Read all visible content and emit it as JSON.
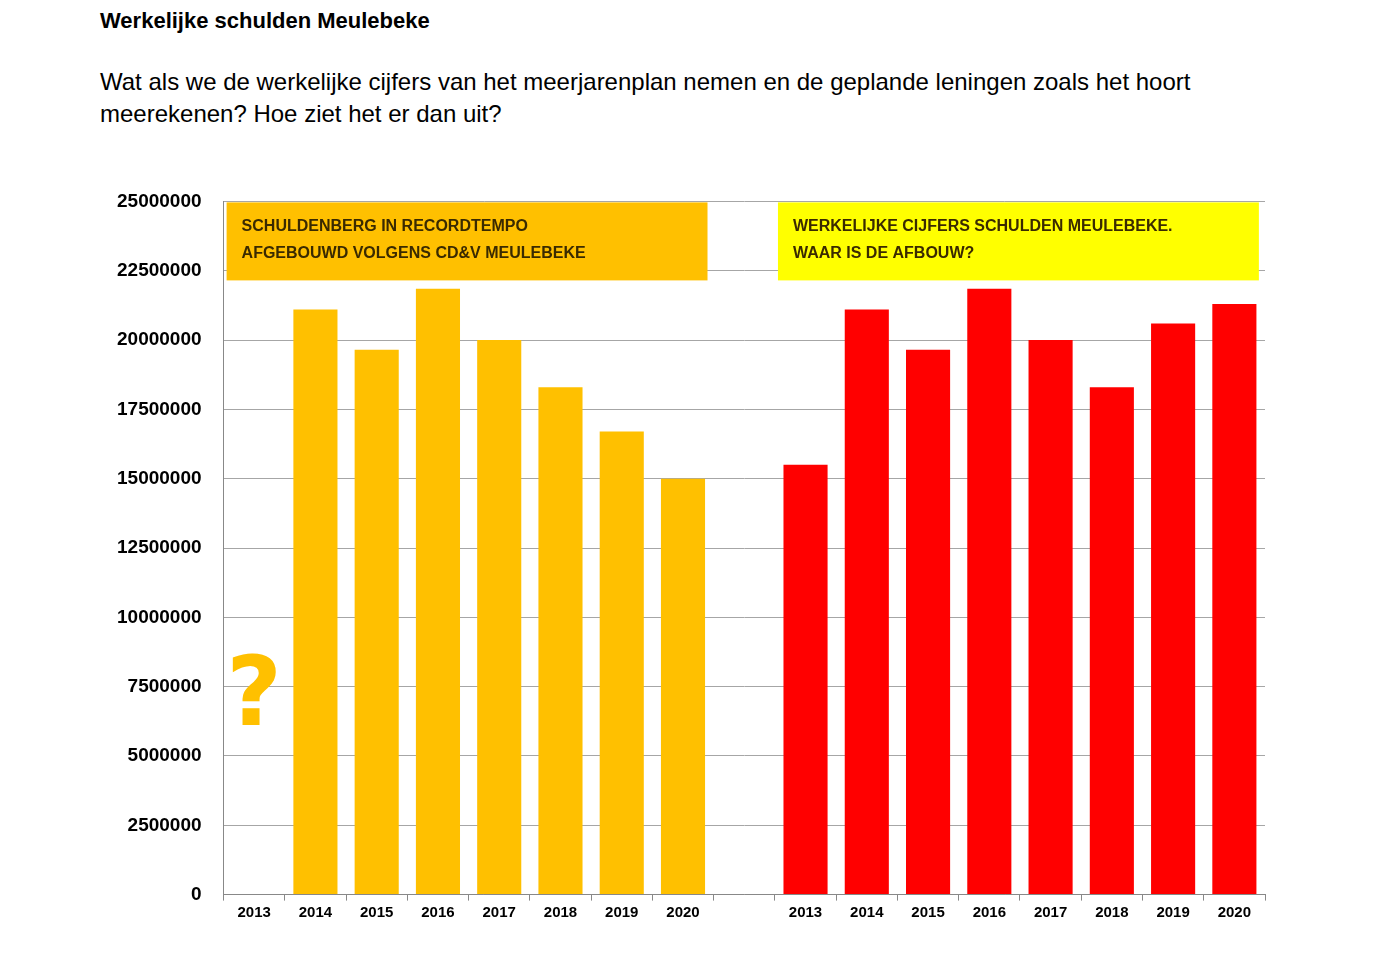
{
  "chart_data": {
    "type": "bar",
    "title": "Werkelijke schulden Meulebeke",
    "subtitle": "Wat als we de werkelijke cijfers van het meerjarenplan nemen en de geplande leningen zoals het hoort meerekenen?   Hoe ziet het er dan uit?",
    "categories": [
      "2013",
      "2014",
      "2015",
      "2016",
      "2017",
      "2018",
      "2019",
      "2020",
      null,
      "2013",
      "2014",
      "2015",
      "2016",
      "2017",
      "2018",
      "2019",
      "2020"
    ],
    "series": [
      {
        "color": "#ffc000",
        "values": [
          null,
          21100000,
          19650000,
          21850000,
          20000000,
          18300000,
          16700000,
          15000000,
          null,
          null,
          null,
          null,
          null,
          null,
          null,
          null,
          null
        ]
      },
      {
        "color": "#ff0000",
        "values": [
          null,
          null,
          null,
          null,
          null,
          null,
          null,
          null,
          null,
          15500000,
          21100000,
          19650000,
          21850000,
          20000000,
          18300000,
          20600000,
          21300000
        ]
      }
    ],
    "annotations": [
      {
        "text": [
          "SCHULDENBERG IN RECORDTEMPO",
          "AFGEBOUWD VOLGENS CD&V MEULEBEKE"
        ]
      },
      {
        "text": [
          "WERKELIJKE CIJFERS SCHULDEN MEULEBEKE.",
          "WAAR IS DE AFBOUW?"
        ]
      },
      {
        "text": [
          "?"
        ]
      }
    ],
    "ylim": [
      0,
      25000000
    ],
    "yticks": [
      0,
      2500000,
      5000000,
      7500000,
      10000000,
      12500000,
      15000000,
      17500000,
      20000000,
      22500000,
      25000000
    ],
    "grid": true,
    "data_labels": false
  }
}
